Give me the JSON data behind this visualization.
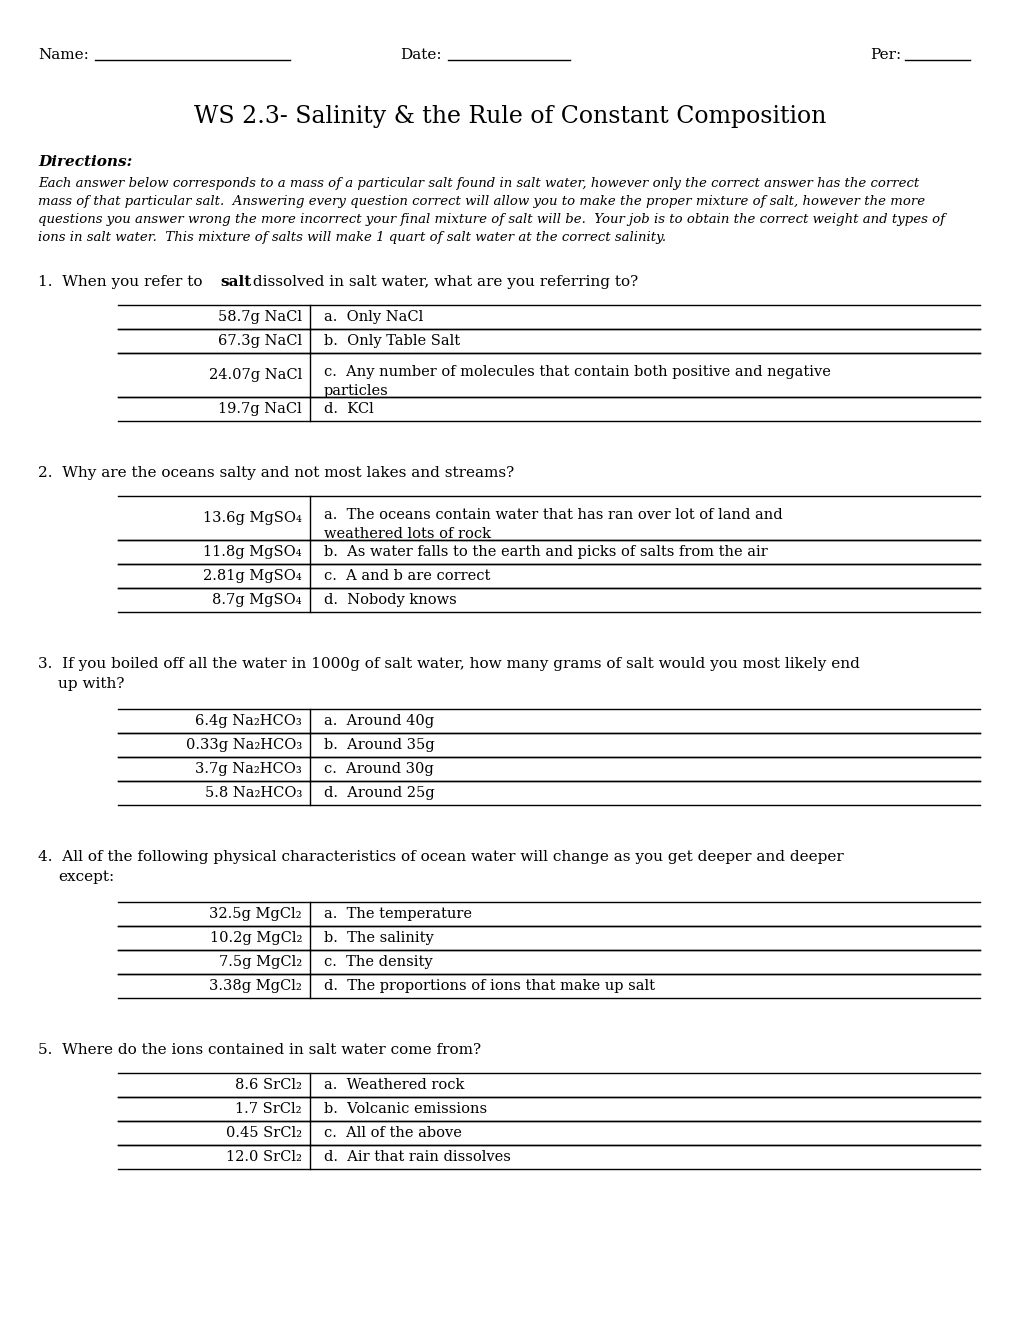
{
  "title": "WS 2.3- Salinity & the Rule of Constant Composition",
  "header_name": "Name:",
  "header_date": "Date:",
  "header_per": "Per:",
  "directions_label": "Directions:",
  "directions_text_lines": [
    "Each answer below corresponds to a mass of a particular salt found in salt water, however only the correct answer has the correct",
    "mass of that particular salt.  Answering every question correct will allow you to make the proper mixture of salt, however the more",
    "questions you answer wrong the more incorrect your final mixture of salt will be.  Your job is to obtain the correct weight and types of",
    "ions in salt water.  This mixture of salts will make 1 quart of salt water at the correct salinity."
  ],
  "questions": [
    {
      "number": "1.",
      "text_before_bold": "When you refer to ",
      "bold_word": "salt",
      "text_after_bold": " dissolved in salt water, what are you referring to?",
      "text2": "",
      "rows": [
        {
          "left": "58.7g NaCl",
          "right": "a.  Only NaCl",
          "double": false
        },
        {
          "left": "67.3g NaCl",
          "right": "b.  Only Table Salt",
          "double": false
        },
        {
          "left": "24.07g NaCl",
          "right": "c.  Any number of molecules that contain both positive and negative",
          "right2": "    particles",
          "double": true
        },
        {
          "left": "19.7g NaCl",
          "right": "d.  KCl",
          "double": false
        }
      ]
    },
    {
      "number": "2.",
      "text_before_bold": "Why are the oceans salty and not most lakes and streams?",
      "bold_word": "",
      "text_after_bold": "",
      "text2": "",
      "rows": [
        {
          "left": "13.6g MgSO₄",
          "right": "a.  The oceans contain water that has ran over lot of land and",
          "right2": "    weathered lots of rock",
          "double": true
        },
        {
          "left": "11.8g MgSO₄",
          "right": "b.  As water falls to the earth and picks of salts from the air",
          "double": false
        },
        {
          "left": "2.81g MgSO₄",
          "right": "c.  A and b are correct",
          "double": false
        },
        {
          "left": "8.7g MgSO₄",
          "right": "d.  Nobody knows",
          "double": false
        }
      ]
    },
    {
      "number": "3.",
      "text_before_bold": "If you boiled off all the water in 1000g of salt water, how many grams of salt would you most likely end",
      "bold_word": "",
      "text_after_bold": "",
      "text2": "up with?",
      "rows": [
        {
          "left": "6.4g Na₂HCO₃",
          "right": "a.  Around 40g",
          "double": false
        },
        {
          "left": "0.33g Na₂HCO₃",
          "right": "b.  Around 35g",
          "double": false
        },
        {
          "left": "3.7g Na₂HCO₃",
          "right": "c.  Around 30g",
          "double": false
        },
        {
          "left": "5.8 Na₂HCO₃",
          "right": "d.  Around 25g",
          "double": false
        }
      ]
    },
    {
      "number": "4.",
      "text_before_bold": "All of the following physical characteristics of ocean water will change as you get deeper and deeper",
      "bold_word": "",
      "text_after_bold": "",
      "text2": "except:",
      "rows": [
        {
          "left": "32.5g MgCl₂",
          "right": "a.  The temperature",
          "double": false
        },
        {
          "left": "10.2g MgCl₂",
          "right": "b.  The salinity",
          "double": false
        },
        {
          "left": "7.5g MgCl₂",
          "right": "c.  The density",
          "double": false
        },
        {
          "left": "3.38g MgCl₂",
          "right": "d.  The proportions of ions that make up salt",
          "double": false
        }
      ]
    },
    {
      "number": "5.",
      "text_before_bold": "Where do the ions contained in salt water come from?",
      "bold_word": "",
      "text_after_bold": "",
      "text2": "",
      "rows": [
        {
          "left": "8.6 SrCl₂",
          "right": "a.  Weathered rock",
          "double": false
        },
        {
          "left": "1.7 SrCl₂",
          "right": "b.  Volcanic emissions",
          "double": false
        },
        {
          "left": "0.45 SrCl₂",
          "right": "c.  All of the above",
          "double": false
        },
        {
          "left": "12.0 SrCl₂",
          "right": "d.  Air that rain dissolves",
          "double": false
        }
      ]
    }
  ],
  "bg_color": "#ffffff",
  "text_color": "#000000"
}
